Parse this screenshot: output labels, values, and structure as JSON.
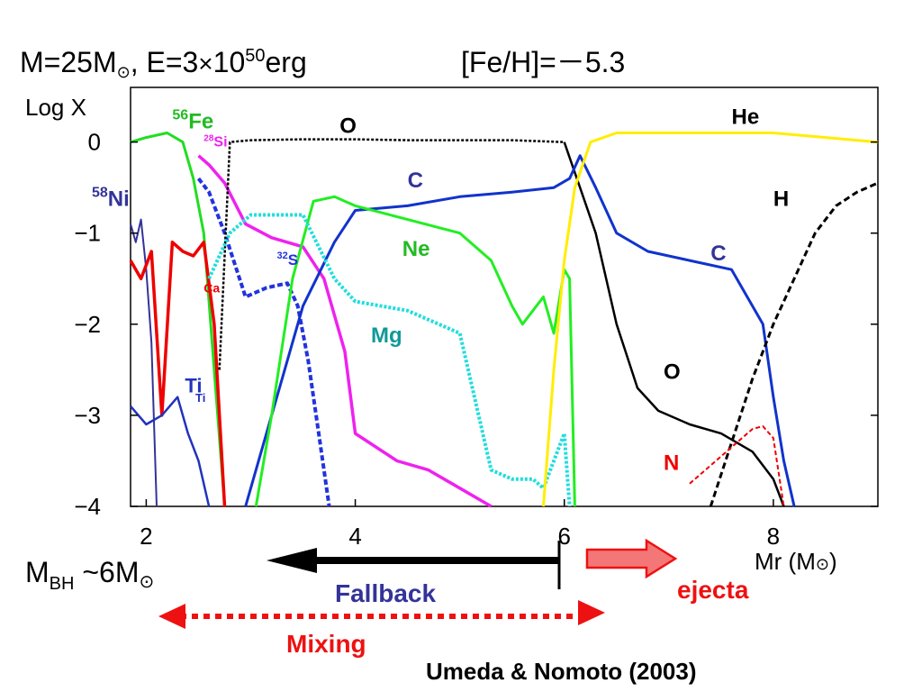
{
  "header": {
    "m_prefix": "M=25M",
    "sun": "⊙",
    "e_prefix": ", E=3",
    "times": "×",
    "e_base": "10",
    "e_exp": "50",
    "e_unit": "erg",
    "feh": "[Fe/H]=",
    "feh_minus": "－",
    "feh_value": "5.3"
  },
  "chart_data": {
    "type": "line",
    "title": "",
    "xlabel_main": "Mr (M",
    "xlabel_sun": "⊙",
    "xlabel_close": ")",
    "ylabel": "Log X",
    "xlim": [
      1.85,
      9.0
    ],
    "ylim": [
      -4.0,
      0.6
    ],
    "xticks": [
      2,
      4,
      6,
      8
    ],
    "xtick_labels": [
      "2",
      "4",
      "6",
      "8"
    ],
    "yticks": [
      0,
      -1,
      -2,
      -3,
      -4
    ],
    "ytick_labels": [
      "0",
      "−1",
      "−2",
      "−3",
      "−4"
    ],
    "grid": false,
    "colors": {
      "fe": "#22dd22",
      "si": "#ee22ee",
      "ni": "#333399",
      "ca": "#ee0000",
      "ti": "#2233bb",
      "s": "#2233dd",
      "o": "#000000",
      "c": "#1133cc",
      "ne": "#22ee22",
      "mg": "#22dddd",
      "he": "#ffee00",
      "h": "#000000",
      "n": "#ee0000",
      "blue_label": "#333399",
      "green_label": "#22bb22",
      "teal_label": "#119999",
      "red_label": "#ee0000"
    },
    "series": [
      {
        "key": "fe",
        "color": "#22dd22",
        "dash": "",
        "width": 3,
        "x": [
          1.85,
          2.0,
          2.2,
          2.35,
          2.45,
          2.55,
          2.65,
          2.75
        ],
        "y": [
          0.0,
          0.05,
          0.1,
          0.0,
          -0.4,
          -1.0,
          -2.5,
          -4.0
        ]
      },
      {
        "key": "si",
        "color": "#ee22ee",
        "dash": "",
        "width": 3.5,
        "x": [
          2.5,
          2.6,
          2.75,
          2.95,
          3.2,
          3.5,
          3.7,
          3.9,
          4.0,
          4.4,
          4.7,
          5.0,
          5.15,
          5.3
        ],
        "y": [
          -0.15,
          -0.25,
          -0.45,
          -0.9,
          -1.05,
          -1.15,
          -1.5,
          -2.3,
          -3.2,
          -3.5,
          -3.6,
          -3.8,
          -3.9,
          -4.0
        ]
      },
      {
        "key": "ni",
        "color": "#333399",
        "dash": "",
        "width": 2,
        "x": [
          1.85,
          1.9,
          1.95,
          2.0,
          2.05,
          2.1
        ],
        "y": [
          -0.9,
          -1.1,
          -0.85,
          -1.4,
          -2.2,
          -4.0
        ]
      },
      {
        "key": "ca",
        "color": "#ee0000",
        "dash": "",
        "width": 3.5,
        "x": [
          1.85,
          1.95,
          2.05,
          2.15,
          2.25,
          2.35,
          2.45,
          2.55,
          2.65,
          2.75
        ],
        "y": [
          -1.3,
          -1.5,
          -1.2,
          -3.0,
          -1.1,
          -1.2,
          -1.25,
          -1.1,
          -2.0,
          -4.0
        ]
      },
      {
        "key": "ti",
        "color": "#2233bb",
        "dash": "",
        "width": 2.5,
        "x": [
          1.85,
          2.0,
          2.15,
          2.3,
          2.4,
          2.5,
          2.6
        ],
        "y": [
          -2.9,
          -3.1,
          -3.0,
          -2.8,
          -3.2,
          -3.5,
          -4.0
        ]
      },
      {
        "key": "s",
        "color": "#2233dd",
        "dash": "6,3",
        "width": 4,
        "x": [
          2.5,
          2.6,
          2.75,
          2.95,
          3.15,
          3.35,
          3.45,
          3.55,
          3.65,
          3.75
        ],
        "y": [
          -0.4,
          -0.55,
          -1.0,
          -1.7,
          -1.6,
          -1.55,
          -1.8,
          -2.4,
          -3.2,
          -4.0
        ]
      },
      {
        "key": "o_inner",
        "color": "#000000",
        "dash": "3,2",
        "width": 2.5,
        "x": [
          2.7,
          2.8,
          3.0,
          3.5,
          4.0,
          4.5,
          5.0,
          5.5,
          6.0
        ],
        "y": [
          -2.5,
          0.0,
          0.02,
          0.03,
          0.03,
          0.02,
          0.02,
          0.02,
          0.0
        ]
      },
      {
        "key": "o_outer",
        "color": "#000000",
        "dash": "",
        "width": 2.5,
        "x": [
          6.0,
          6.15,
          6.3,
          6.5,
          6.7,
          6.9,
          7.2,
          7.5,
          7.8,
          8.0,
          8.1
        ],
        "y": [
          0.0,
          -0.5,
          -1.0,
          -2.0,
          -2.7,
          -2.95,
          -3.1,
          -3.2,
          -3.4,
          -3.7,
          -4.0
        ]
      },
      {
        "key": "c",
        "color": "#1133cc",
        "dash": "",
        "width": 3,
        "x": [
          2.95,
          3.2,
          3.5,
          3.8,
          4.0,
          4.5,
          5.0,
          5.5,
          5.9,
          6.05,
          6.15,
          6.3,
          6.5,
          6.8,
          7.2,
          7.6,
          7.9,
          8.0,
          8.1,
          8.2
        ],
        "y": [
          -4.0,
          -3.0,
          -1.8,
          -1.1,
          -0.75,
          -0.7,
          -0.6,
          -0.55,
          -0.5,
          -0.4,
          -0.15,
          -0.5,
          -1.0,
          -1.2,
          -1.3,
          -1.4,
          -2.0,
          -2.8,
          -3.5,
          -4.0
        ]
      },
      {
        "key": "ne",
        "color": "#22ee22",
        "dash": "",
        "width": 3,
        "x": [
          3.05,
          3.2,
          3.4,
          3.6,
          3.8,
          4.0,
          4.5,
          5.0,
          5.3,
          5.5,
          5.6,
          5.7,
          5.8,
          5.9,
          6.0,
          6.05,
          6.1
        ],
        "y": [
          -4.0,
          -3.0,
          -1.5,
          -0.65,
          -0.6,
          -0.7,
          -0.85,
          -1.0,
          -1.3,
          -1.8,
          -2.0,
          -1.85,
          -1.7,
          -2.1,
          -1.4,
          -1.5,
          -4.0
        ]
      },
      {
        "key": "mg",
        "color": "#22dddd",
        "dash": "3,2",
        "width": 4,
        "x": [
          2.6,
          2.8,
          3.0,
          3.2,
          3.5,
          3.8,
          4.0,
          4.5,
          5.0,
          5.3,
          5.5,
          5.7,
          5.8,
          5.9,
          6.0,
          6.05
        ],
        "y": [
          -1.5,
          -1.0,
          -0.8,
          -0.8,
          -0.8,
          -1.5,
          -1.75,
          -1.85,
          -2.1,
          -3.6,
          -3.7,
          -3.7,
          -3.8,
          -3.5,
          -3.2,
          -4.0
        ]
      },
      {
        "key": "he",
        "color": "#ffee00",
        "dash": "",
        "width": 3,
        "x": [
          5.8,
          5.9,
          6.0,
          6.1,
          6.25,
          6.5,
          7.0,
          7.5,
          8.0,
          8.5,
          9.0
        ],
        "y": [
          -4.0,
          -2.5,
          -1.3,
          -0.5,
          0.0,
          0.1,
          0.1,
          0.1,
          0.1,
          0.05,
          0.0
        ]
      },
      {
        "key": "h",
        "color": "#000000",
        "dash": "7,4",
        "width": 3,
        "x": [
          7.4,
          7.6,
          7.8,
          8.0,
          8.2,
          8.4,
          8.6,
          8.8,
          9.0
        ],
        "y": [
          -4.0,
          -3.3,
          -2.6,
          -2.0,
          -1.5,
          -1.0,
          -0.7,
          -0.55,
          -0.45
        ]
      },
      {
        "key": "n",
        "color": "#ee0000",
        "dash": "5,3",
        "width": 2,
        "x": [
          7.2,
          7.4,
          7.6,
          7.8,
          7.9,
          8.0,
          8.1
        ],
        "y": [
          -3.75,
          -3.55,
          -3.35,
          -3.15,
          -3.12,
          -3.25,
          -4.0
        ]
      }
    ],
    "labels": [
      {
        "text": "Fe",
        "super": "56",
        "x": 2.25,
        "y": 0.15,
        "color": "#22bb22",
        "size": 24
      },
      {
        "text": "Si",
        "super": "28",
        "x": 2.55,
        "y": -0.05,
        "color": "#ee22ee",
        "size": 16
      },
      {
        "text": "Ni",
        "super": "58",
        "x": 1.85,
        "y": -0.7,
        "color": "#333399",
        "size": 24,
        "outside": true
      },
      {
        "text": "Ca",
        "super": "",
        "x": 2.55,
        "y": -1.65,
        "color": "#ee0000",
        "size": 14
      },
      {
        "text": "Ti",
        "super": "",
        "x": 2.37,
        "y": -2.75,
        "color": "#2233bb",
        "size": 22
      },
      {
        "text": "Ti",
        "super": "",
        "x": 2.47,
        "y": -2.85,
        "color": "#2233bb",
        "size": 13
      },
      {
        "text": "S",
        "super": "32",
        "x": 3.25,
        "y": -1.35,
        "color": "#2233dd",
        "size": 17
      },
      {
        "text": "O",
        "super": "",
        "x": 3.85,
        "y": 0.1,
        "color": "#000000",
        "size": 24
      },
      {
        "text": "C",
        "super": "",
        "x": 4.5,
        "y": -0.5,
        "color": "#333399",
        "size": 24
      },
      {
        "text": "Ne",
        "super": "",
        "x": 4.45,
        "y": -1.25,
        "color": "#22bb22",
        "size": 24
      },
      {
        "text": "Mg",
        "super": "",
        "x": 4.15,
        "y": -2.2,
        "color": "#119999",
        "size": 24
      },
      {
        "text": "He",
        "super": "",
        "x": 7.6,
        "y": 0.2,
        "color": "#000000",
        "size": 24
      },
      {
        "text": "H",
        "super": "",
        "x": 8.0,
        "y": -0.7,
        "color": "#000000",
        "size": 24
      },
      {
        "text": "C",
        "super": "",
        "x": 7.4,
        "y": -1.3,
        "color": "#333399",
        "size": 24
      },
      {
        "text": "O",
        "super": "",
        "x": 6.95,
        "y": -2.6,
        "color": "#000000",
        "size": 24
      },
      {
        "text": "N",
        "super": "",
        "x": 6.95,
        "y": -3.6,
        "color": "#ee0000",
        "size": 24
      }
    ]
  },
  "annotations": {
    "mbh_main": "M",
    "mbh_sub": "BH",
    "mbh_value": " ~6M",
    "mbh_sun": "⊙",
    "fallback": "Fallback",
    "ejecta": "ejecta",
    "mixing": "Mixing",
    "citation": "Umeda & Nomoto (2003)",
    "fallback_color": "#333399",
    "ejecta_color": "#ee1111",
    "mixing_color": "#ee1111"
  }
}
